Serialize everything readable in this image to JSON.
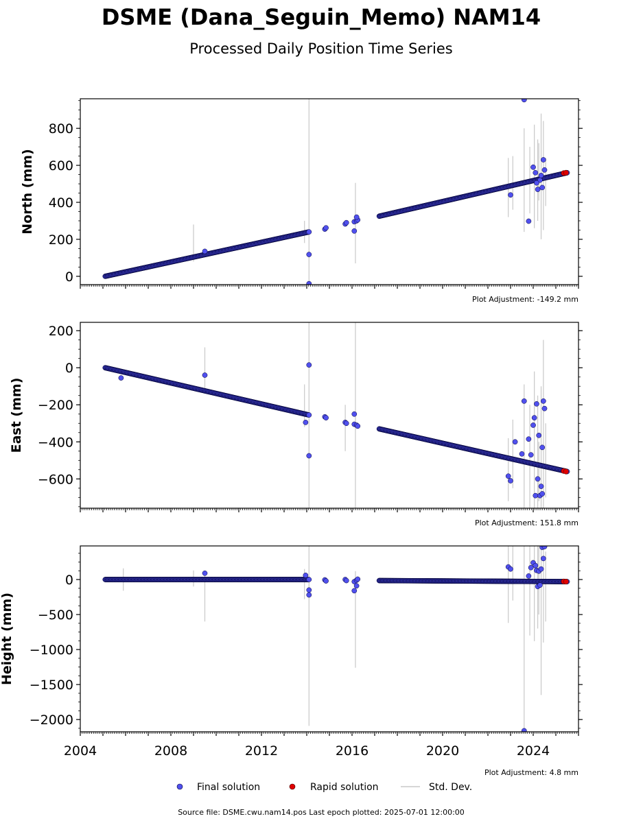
{
  "title": "DSME (Dana_Seguin_Memo) NAM14",
  "subtitle": "Processed Daily Position Time Series",
  "source_line": "Source file: DSME.cwu.nam14.pos  Last epoch plotted: 2025-07-01 12:00:00",
  "legend": {
    "final": "Final solution",
    "rapid": "Rapid solution",
    "std": "Std. Dev."
  },
  "colors": {
    "final": "#5050ee",
    "rapid": "#e00000",
    "std": "#c8c8c8",
    "edge": "#000033"
  },
  "chart_data": [
    {
      "type": "scatter",
      "ylabel": "North (mm)",
      "adjustment": "Plot Adjustment: -149.2 mm",
      "xlim": [
        2004,
        2026
      ],
      "ylim": [
        -45,
        960
      ],
      "yticks": [
        0,
        200,
        400,
        600,
        800
      ],
      "ytick_labels": [
        "0",
        "200",
        "400",
        "600",
        "800"
      ],
      "segments": [
        {
          "x0": 2005.1,
          "x1": 2014.1,
          "y0": 0,
          "y1": 240
        },
        {
          "x0": 2017.2,
          "x1": 2025.5,
          "y0": 325,
          "y1": 560
        }
      ],
      "cluster_points": [
        [
          2014.8,
          255
        ],
        [
          2014.85,
          262
        ],
        [
          2015.7,
          283
        ],
        [
          2015.75,
          290
        ],
        [
          2016.1,
          295
        ],
        [
          2016.2,
          300
        ],
        [
          2016.25,
          305
        ]
      ],
      "outliers": [
        [
          2009.5,
          135
        ],
        [
          2014.1,
          118
        ],
        [
          2014.1,
          -40
        ],
        [
          2016.1,
          245
        ],
        [
          2016.2,
          320
        ],
        [
          2023.0,
          440
        ],
        [
          2023.8,
          298
        ],
        [
          2023.6,
          955
        ],
        [
          2024.0,
          590
        ],
        [
          2024.3,
          520
        ],
        [
          2024.4,
          480
        ],
        [
          2024.2,
          470
        ],
        [
          2024.1,
          560
        ],
        [
          2024.45,
          630
        ],
        [
          2024.5,
          575
        ],
        [
          2024.35,
          545
        ],
        [
          2024.15,
          505
        ]
      ],
      "rapid_points": [
        [
          2025.35,
          558
        ],
        [
          2025.45,
          560
        ]
      ],
      "std_bars": [
        [
          2009.0,
          80,
          280
        ],
        [
          2014.1,
          -45,
          960
        ],
        [
          2013.9,
          180,
          300
        ],
        [
          2016.15,
          70,
          505
        ],
        [
          2022.9,
          320,
          640
        ],
        [
          2023.1,
          360,
          650
        ],
        [
          2023.6,
          240,
          800
        ],
        [
          2023.85,
          340,
          700
        ],
        [
          2024.05,
          260,
          820
        ],
        [
          2024.2,
          300,
          740
        ],
        [
          2024.35,
          200,
          880
        ],
        [
          2024.45,
          250,
          840
        ],
        [
          2024.55,
          380,
          640
        ],
        [
          2024.25,
          410,
          720
        ]
      ]
    },
    {
      "type": "scatter",
      "ylabel": "East (mm)",
      "adjustment": "Plot Adjustment: 151.8 mm",
      "xlim": [
        2004,
        2026
      ],
      "ylim": [
        -758,
        245
      ],
      "yticks": [
        -600,
        -400,
        -200,
        0,
        200
      ],
      "ytick_labels": [
        "−600",
        "−400",
        "−200",
        "0",
        "200"
      ],
      "segments": [
        {
          "x0": 2005.1,
          "x1": 2014.1,
          "y0": 0,
          "y1": -255
        },
        {
          "x0": 2017.2,
          "x1": 2025.5,
          "y0": -330,
          "y1": -560
        }
      ],
      "cluster_points": [
        [
          2014.8,
          -265
        ],
        [
          2014.85,
          -270
        ],
        [
          2015.7,
          -295
        ],
        [
          2015.75,
          -300
        ],
        [
          2016.1,
          -305
        ],
        [
          2016.2,
          -310
        ],
        [
          2016.25,
          -315
        ]
      ],
      "outliers": [
        [
          2005.8,
          -55
        ],
        [
          2009.5,
          -40
        ],
        [
          2013.95,
          -295
        ],
        [
          2014.1,
          15
        ],
        [
          2014.1,
          -475
        ],
        [
          2016.1,
          -250
        ],
        [
          2022.9,
          -585
        ],
        [
          2023.0,
          -610
        ],
        [
          2023.2,
          -400
        ],
        [
          2023.6,
          -180
        ],
        [
          2023.8,
          -385
        ],
        [
          2024.0,
          -310
        ],
        [
          2024.05,
          -270
        ],
        [
          2024.15,
          -195
        ],
        [
          2024.25,
          -365
        ],
        [
          2024.4,
          -430
        ],
        [
          2024.45,
          -180
        ],
        [
          2024.5,
          -220
        ],
        [
          2024.3,
          -690
        ],
        [
          2024.4,
          -680
        ],
        [
          2024.1,
          -690
        ],
        [
          2024.2,
          -600
        ],
        [
          2023.5,
          -465
        ],
        [
          2023.9,
          -470
        ],
        [
          2024.35,
          -640
        ]
      ],
      "rapid_points": [
        [
          2025.35,
          -557
        ],
        [
          2025.45,
          -560
        ]
      ],
      "std_bars": [
        [
          2009.5,
          -140,
          110
        ],
        [
          2014.1,
          -758,
          245
        ],
        [
          2013.9,
          -320,
          -90
        ],
        [
          2016.15,
          -758,
          245
        ],
        [
          2015.7,
          -450,
          -200
        ],
        [
          2022.9,
          -720,
          -380
        ],
        [
          2023.1,
          -650,
          -280
        ],
        [
          2023.6,
          -758,
          -90
        ],
        [
          2023.85,
          -758,
          -200
        ],
        [
          2024.05,
          -758,
          -20
        ],
        [
          2024.2,
          -758,
          -150
        ],
        [
          2024.35,
          -758,
          -100
        ],
        [
          2024.45,
          -758,
          150
        ],
        [
          2024.55,
          -700,
          -300
        ],
        [
          2024.25,
          -720,
          -400
        ]
      ]
    },
    {
      "type": "scatter",
      "ylabel": "Height (mm)",
      "adjustment": "Plot Adjustment: 4.8 mm",
      "xlim": [
        2004,
        2026
      ],
      "ylim": [
        -2175,
        480
      ],
      "yticks": [
        -2000,
        -1500,
        -1000,
        -500,
        0
      ],
      "ytick_labels": [
        "−2000",
        "−1500",
        "−1000",
        "−500",
        "0"
      ],
      "xticks": [
        2004,
        2008,
        2012,
        2016,
        2020,
        2024
      ],
      "xtick_labels": [
        "2004",
        "2008",
        "2012",
        "2016",
        "2020",
        "2024"
      ],
      "segments": [
        {
          "x0": 2005.1,
          "x1": 2014.1,
          "y0": 0,
          "y1": 0
        },
        {
          "x0": 2017.2,
          "x1": 2025.5,
          "y0": -15,
          "y1": -30
        }
      ],
      "cluster_points": [
        [
          2014.8,
          -5
        ],
        [
          2014.85,
          -20
        ],
        [
          2015.7,
          0
        ],
        [
          2015.75,
          -15
        ],
        [
          2016.1,
          -30
        ],
        [
          2016.2,
          -10
        ],
        [
          2016.25,
          5
        ]
      ],
      "outliers": [
        [
          2009.5,
          90
        ],
        [
          2013.95,
          60
        ],
        [
          2014.1,
          -150
        ],
        [
          2014.1,
          -220
        ],
        [
          2016.1,
          -160
        ],
        [
          2016.2,
          -90
        ],
        [
          2022.9,
          180
        ],
        [
          2023.0,
          150
        ],
        [
          2023.6,
          -2160
        ],
        [
          2023.9,
          170
        ],
        [
          2024.0,
          240
        ],
        [
          2024.1,
          200
        ],
        [
          2024.15,
          130
        ],
        [
          2024.25,
          120
        ],
        [
          2024.4,
          460
        ],
        [
          2024.45,
          300
        ],
        [
          2024.5,
          470
        ],
        [
          2024.35,
          150
        ],
        [
          2024.2,
          -100
        ],
        [
          2024.3,
          -80
        ],
        [
          2023.8,
          50
        ]
      ],
      "rapid_points": [
        [
          2025.35,
          -28
        ],
        [
          2025.45,
          -30
        ]
      ],
      "std_bars": [
        [
          2005.9,
          -160,
          160
        ],
        [
          2009.0,
          -100,
          130
        ],
        [
          2009.5,
          -600,
          100
        ],
        [
          2014.1,
          -2090,
          480
        ],
        [
          2013.9,
          -280,
          150
        ],
        [
          2016.15,
          -1260,
          120
        ],
        [
          2022.9,
          -620,
          480
        ],
        [
          2023.1,
          -300,
          480
        ],
        [
          2023.6,
          -2175,
          480
        ],
        [
          2023.85,
          -800,
          480
        ],
        [
          2024.05,
          -880,
          480
        ],
        [
          2024.2,
          -700,
          480
        ],
        [
          2024.35,
          -1650,
          480
        ],
        [
          2024.45,
          -900,
          480
        ],
        [
          2024.55,
          -600,
          400
        ],
        [
          2024.25,
          -500,
          480
        ]
      ]
    }
  ]
}
